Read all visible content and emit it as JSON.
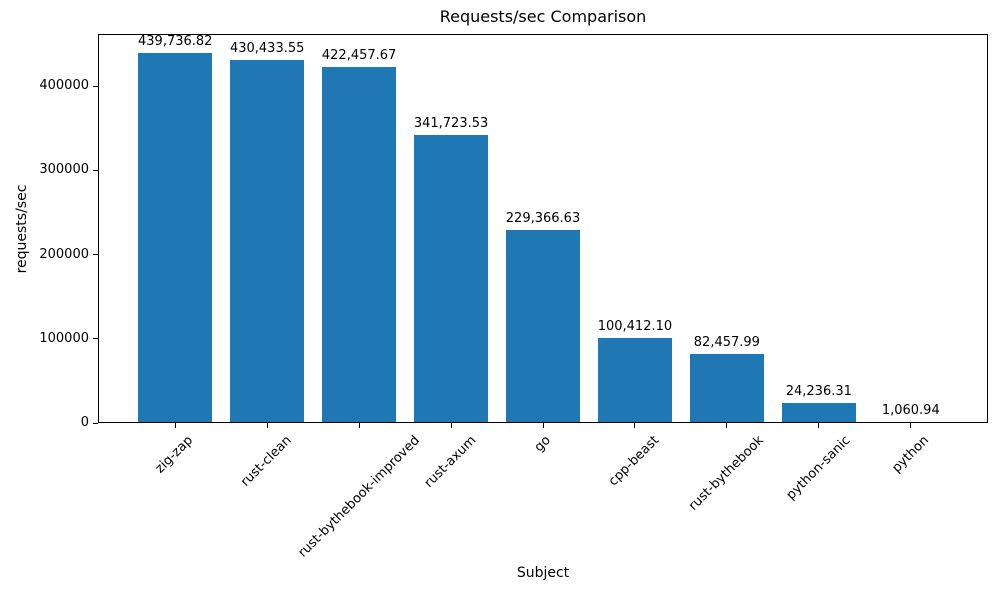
{
  "chart_data": {
    "type": "bar",
    "title": "Requests/sec Comparison",
    "xlabel": "Subject",
    "ylabel": "requests/sec",
    "categories": [
      "zig-zap",
      "rust-clean",
      "rust-bythebook-improved",
      "rust-axum",
      "go",
      "cpp-beast",
      "rust-bythebook",
      "python-sanic",
      "python"
    ],
    "values": [
      439736.82,
      430433.55,
      422457.67,
      341723.53,
      229366.63,
      100412.1,
      82457.99,
      24236.31,
      1060.94
    ],
    "value_labels": [
      "439,736.82",
      "430,433.55",
      "422,457.67",
      "341,723.53",
      "229,366.63",
      "100,412.10",
      "82,457.99",
      "24,236.31",
      "1,060.94"
    ],
    "bar_color": "#1f77b4",
    "axis_color": "#000000",
    "text_color": "#000000",
    "background_color": "#ffffff",
    "ylim": [
      0,
      461724
    ],
    "yticks": [
      0,
      100000,
      200000,
      300000,
      400000
    ],
    "ytick_labels": [
      "0",
      "100000",
      "200000",
      "300000",
      "400000"
    ],
    "xtick_rotation_deg": 45,
    "grid": false,
    "legend": "none"
  }
}
